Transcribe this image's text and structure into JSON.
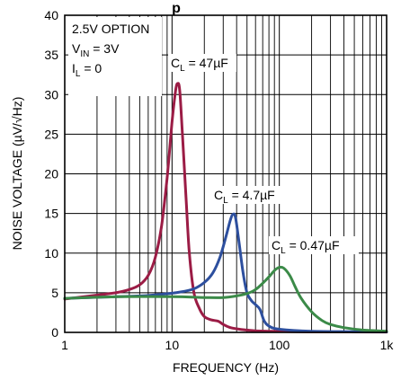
{
  "chart_data": {
    "type": "line",
    "title_fragment": "p",
    "xlabel": "FREQUENCY (Hz)",
    "ylabel": "NOISE VOLTAGE (µV/√Hz)",
    "xscale": "log",
    "xlim": [
      1,
      1000
    ],
    "ylim": [
      0,
      40
    ],
    "x_ticks": [
      {
        "value": 1,
        "label": "1"
      },
      {
        "value": 10,
        "label": "10"
      },
      {
        "value": 100,
        "label": "100"
      },
      {
        "value": 1000,
        "label": "1k"
      }
    ],
    "y_ticks": [
      0,
      5,
      10,
      15,
      20,
      25,
      30,
      35,
      40
    ],
    "grid": true,
    "conditions": {
      "line1": "2.5V OPTION",
      "line2_main": "V",
      "line2_sub": "IN",
      "line2_rest": " = 3V",
      "line3_main": "I",
      "line3_sub": "L",
      "line3_rest": " = 0"
    },
    "series": [
      {
        "label_main": "C",
        "label_sub": "L",
        "label_rest": " = 47µF",
        "color": "#9b1c45",
        "points": [
          [
            1,
            4.2
          ],
          [
            2,
            4.7
          ],
          [
            3,
            5.0
          ],
          [
            4,
            5.4
          ],
          [
            5,
            6.0
          ],
          [
            6,
            7.2
          ],
          [
            7,
            9.5
          ],
          [
            8,
            13.5
          ],
          [
            9,
            19.5
          ],
          [
            10,
            26.5
          ],
          [
            10.8,
            30.5
          ],
          [
            11.3,
            31.4
          ],
          [
            11.8,
            30.5
          ],
          [
            12.5,
            25
          ],
          [
            13.5,
            17
          ],
          [
            14.5,
            10
          ],
          [
            16,
            5
          ],
          [
            18,
            3
          ],
          [
            20,
            2
          ],
          [
            23,
            1.6
          ],
          [
            27,
            1.4
          ],
          [
            30,
            1.0
          ],
          [
            35,
            0.6
          ],
          [
            45,
            0.35
          ],
          [
            60,
            0.2
          ],
          [
            100,
            0.12
          ],
          [
            200,
            0.07
          ],
          [
            1000,
            0.05
          ]
        ]
      },
      {
        "label_main": "C",
        "label_sub": "L",
        "label_rest": " = 4.7µF",
        "color": "#2d4f9e",
        "points": [
          [
            1,
            4.3
          ],
          [
            3,
            4.5
          ],
          [
            5,
            4.6
          ],
          [
            8,
            4.8
          ],
          [
            12,
            5.1
          ],
          [
            16,
            5.5
          ],
          [
            20,
            6.3
          ],
          [
            24,
            7.5
          ],
          [
            28,
            9.5
          ],
          [
            32,
            12.2
          ],
          [
            35,
            14.2
          ],
          [
            37,
            14.9
          ],
          [
            39,
            14.5
          ],
          [
            42,
            11.5
          ],
          [
            46,
            7.5
          ],
          [
            50,
            5.0
          ],
          [
            55,
            4.0
          ],
          [
            60,
            3.5
          ],
          [
            66,
            2.9
          ],
          [
            72,
            1.5
          ],
          [
            80,
            0.8
          ],
          [
            100,
            0.4
          ],
          [
            200,
            0.15
          ],
          [
            1000,
            0.06
          ]
        ]
      },
      {
        "label_main": "C",
        "label_sub": "L",
        "label_rest": " = 0.47µF",
        "color": "#3b8a48",
        "points": [
          [
            1,
            4.3
          ],
          [
            3,
            4.5
          ],
          [
            10,
            4.5
          ],
          [
            20,
            4.4
          ],
          [
            30,
            4.4
          ],
          [
            40,
            4.6
          ],
          [
            50,
            4.9
          ],
          [
            60,
            5.4
          ],
          [
            70,
            6.2
          ],
          [
            80,
            7.0
          ],
          [
            90,
            7.8
          ],
          [
            100,
            8.2
          ],
          [
            110,
            8.1
          ],
          [
            125,
            7.2
          ],
          [
            140,
            5.8
          ],
          [
            160,
            4.3
          ],
          [
            200,
            2.6
          ],
          [
            250,
            1.5
          ],
          [
            300,
            1.0
          ],
          [
            400,
            0.6
          ],
          [
            600,
            0.3
          ],
          [
            1000,
            0.15
          ]
        ]
      }
    ]
  }
}
